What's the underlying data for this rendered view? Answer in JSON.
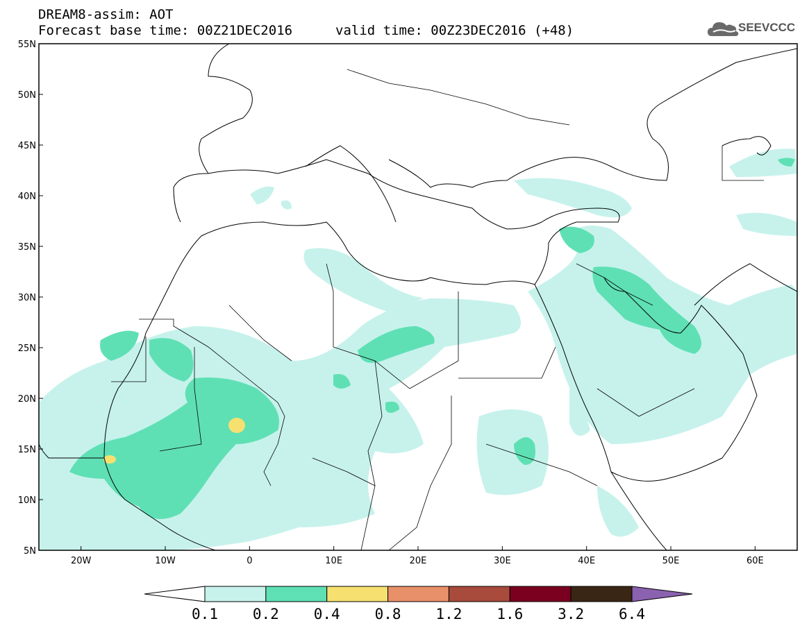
{
  "title_line1": "DREAM8-assim: AOT",
  "title_line2": "Forecast base time: 00Z21DEC2016",
  "valid_time": "valid time: 00Z23DEC2016 (+48)",
  "logo_text": "SEEVCCC",
  "logo_icon": "cloud-icon",
  "map": {
    "lon_range": [
      -25,
      65
    ],
    "lat_range": [
      5,
      55
    ],
    "lat_ticks": [
      {
        "value": 55,
        "label": "55N"
      },
      {
        "value": 50,
        "label": "50N"
      },
      {
        "value": 45,
        "label": "45N"
      },
      {
        "value": 40,
        "label": "40N"
      },
      {
        "value": 35,
        "label": "35N"
      },
      {
        "value": 30,
        "label": "30N"
      },
      {
        "value": 25,
        "label": "25N"
      },
      {
        "value": 20,
        "label": "20N"
      },
      {
        "value": 15,
        "label": "15N"
      },
      {
        "value": 10,
        "label": "10N"
      },
      {
        "value": 5,
        "label": "5N"
      }
    ],
    "lon_ticks": [
      {
        "value": -20,
        "label": "20W"
      },
      {
        "value": -10,
        "label": "10W"
      },
      {
        "value": 0,
        "label": "0"
      },
      {
        "value": 10,
        "label": "10E"
      },
      {
        "value": 20,
        "label": "20E"
      },
      {
        "value": 30,
        "label": "30E"
      },
      {
        "value": 40,
        "label": "40E"
      },
      {
        "value": 50,
        "label": "50E"
      },
      {
        "value": 60,
        "label": "60E"
      }
    ]
  },
  "colorbar": {
    "colors": [
      "#ffffff",
      "#c7f2ec",
      "#5fe0b4",
      "#f5e070",
      "#e8906a",
      "#a84a3c",
      "#7a0020",
      "#3a2614",
      "#8a62b0"
    ],
    "labels": [
      "0.1",
      "0.2",
      "0.4",
      "0.8",
      "1.2",
      "1.6",
      "3.2",
      "6.4"
    ]
  }
}
